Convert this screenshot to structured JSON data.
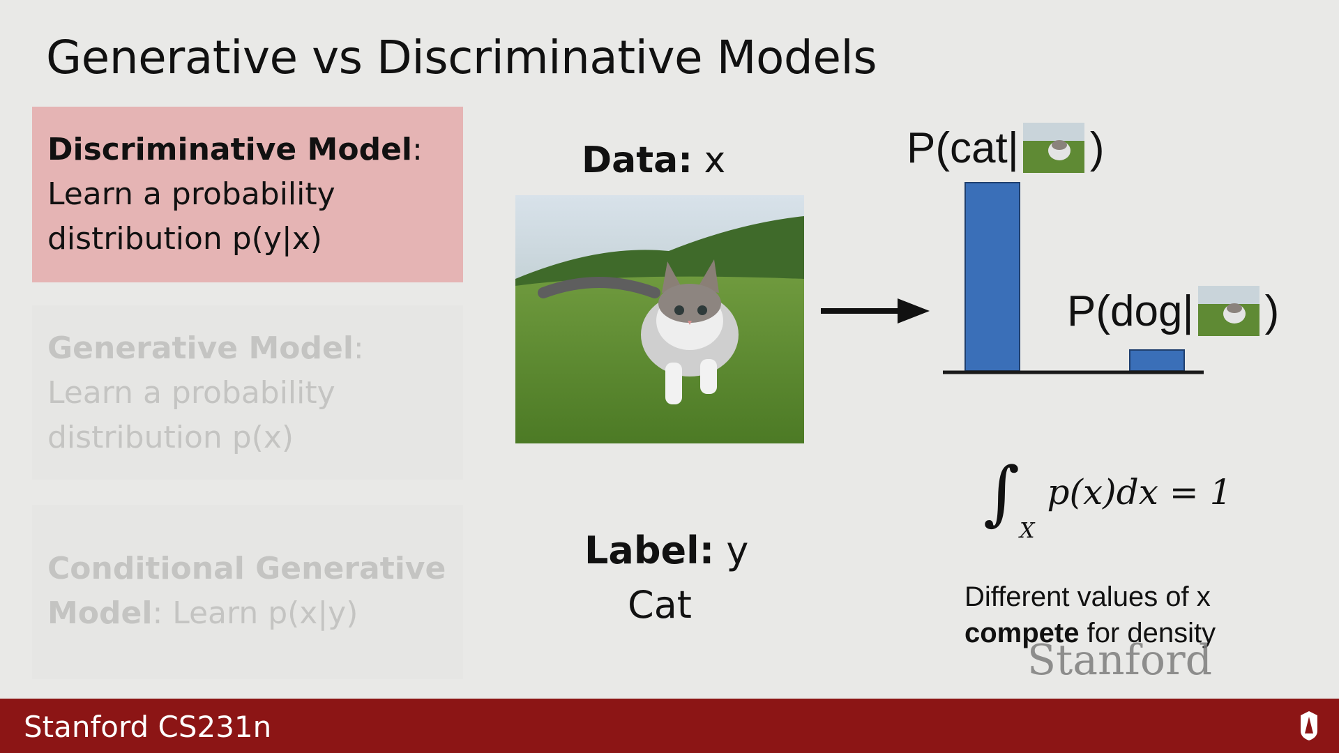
{
  "slide": {
    "title": "Generative vs Discriminative Models"
  },
  "boxes": {
    "discriminative": {
      "term": "Discriminative Model",
      "colon": ":",
      "line1": "Learn a probability",
      "line2": "distribution p(y|x)"
    },
    "generative": {
      "term": "Generative Model",
      "colon": ":",
      "line1": "Learn a probability",
      "line2": "distribution p(x)"
    },
    "conditional": {
      "term1": "Conditional Generative",
      "term2": "Model",
      "rest": ":  Learn p(x|y)"
    }
  },
  "center": {
    "data_bold": "Data:",
    "data_var": " x",
    "label_bold": "Label:",
    "label_var": " y",
    "label_value": "Cat"
  },
  "right": {
    "p_cat": "P(cat|",
    "p_dog": "P(dog|",
    "close_paren": ")",
    "integral_expr": "p(x)dx = 1",
    "integral_sub": "X",
    "caption_line1": "Different values of x",
    "caption_bold": "compete",
    "caption_rest": " for density",
    "watermark": "Stanford"
  },
  "footer": {
    "text": "Stanford CS231n"
  },
  "colors": {
    "footer": "#8c1515",
    "highlight_box": "#e5b4b4",
    "bar": "#3a6fb8"
  },
  "chart_data": {
    "type": "bar",
    "categories": [
      "cat",
      "dog"
    ],
    "values": [
      0.9,
      0.1
    ],
    "ylim": [
      0,
      1
    ]
  }
}
